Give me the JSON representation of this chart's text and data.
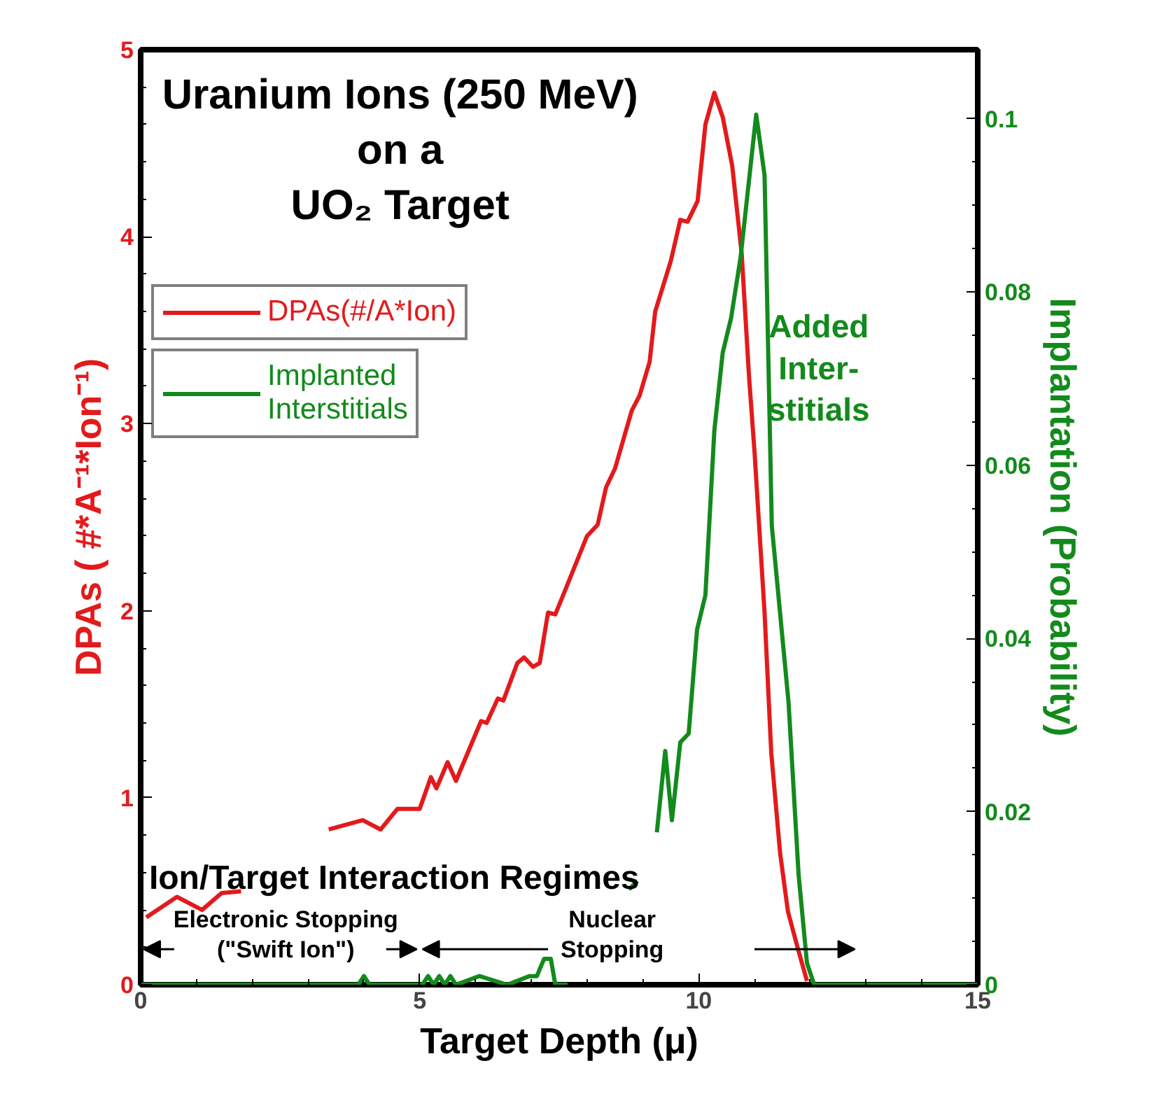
{
  "chart_data": {
    "type": "line",
    "title": "Uranium Ions (250 MeV)\non a\nUO₂ Target",
    "xlabel": "Target Depth (μ)",
    "ylabel": "DPAs ( #*A⁻¹*Ion⁻¹)",
    "y2label": "Implantation (Probability)",
    "xlim": [
      0,
      15
    ],
    "xticks": [
      0,
      5,
      10,
      15
    ],
    "ylim": [
      0,
      5
    ],
    "yticks": [
      0,
      1,
      2,
      3,
      4,
      5
    ],
    "y2lim": [
      0,
      0.108
    ],
    "y2ticks": [
      0,
      0.02,
      0.04,
      0.06,
      0.08,
      0.1
    ],
    "grid": false,
    "legend": "top left",
    "marker": "none",
    "line_style": "solid",
    "series": [
      {
        "name": "DPAs(#/A*Ion)",
        "color": "#e31a1c",
        "x": [
          0.1,
          0.65,
          1.1,
          1.45,
          1.8,
          2.5,
          3.37,
          3.98,
          4.3,
          4.6,
          5.0,
          5.2,
          5.3,
          5.5,
          5.65,
          6.1,
          6.2,
          6.4,
          6.5,
          6.75,
          6.87,
          7.03,
          7.15,
          7.3,
          7.43,
          7.58,
          8.0,
          8.19,
          8.34,
          8.5,
          8.8,
          8.94,
          9.12,
          9.22,
          9.5,
          9.67,
          9.8,
          9.98,
          10.12,
          10.28,
          10.43,
          10.6,
          10.77,
          10.9,
          11.0,
          11.18,
          11.3,
          11.46,
          11.6,
          11.78,
          11.94
        ],
        "values": [
          0.36,
          0.47,
          0.4,
          0.49,
          0.5,
          null,
          0.83,
          0.88,
          0.83,
          0.94,
          0.94,
          1.11,
          1.05,
          1.19,
          1.09,
          1.41,
          1.4,
          1.53,
          1.52,
          1.72,
          1.75,
          1.7,
          1.72,
          1.99,
          1.98,
          2.09,
          2.4,
          2.46,
          2.66,
          2.76,
          3.07,
          3.15,
          3.33,
          3.6,
          3.87,
          4.09,
          4.08,
          4.19,
          4.6,
          4.77,
          4.64,
          4.38,
          3.91,
          3.26,
          2.85,
          1.99,
          1.24,
          0.7,
          0.39,
          0.19,
          0.02
        ]
      },
      {
        "name": "Implanted\nInterstitials",
        "color": "#138a1c",
        "axis": "y2",
        "x": [
          0,
          3.9,
          4.0,
          4.1,
          5.05,
          5.15,
          5.25,
          5.35,
          5.45,
          5.55,
          5.65,
          6.07,
          6.57,
          6.97,
          7.1,
          7.23,
          7.35,
          7.43,
          7.65,
          8.0,
          8.75,
          8.9,
          9.0,
          9.25,
          9.4,
          9.52,
          9.67,
          9.82,
          9.97,
          10.12,
          10.28,
          10.43,
          10.58,
          10.75,
          11.03,
          11.18,
          11.31,
          11.61,
          11.79,
          11.94,
          12.07,
          15
        ],
        "values": [
          0,
          0,
          0.001,
          0,
          0,
          0.001,
          0,
          0.001,
          0,
          0.001,
          0,
          0.001,
          0,
          0.001,
          0.001,
          0.003,
          0.003,
          0,
          0,
          null,
          0.011,
          0.012,
          null,
          0.0176,
          0.027,
          0.019,
          0.028,
          0.029,
          0.041,
          0.045,
          0.064,
          0.073,
          0.077,
          0.084,
          0.1005,
          0.0935,
          0.053,
          0.0326,
          0.0127,
          0.0025,
          0,
          0
        ]
      }
    ],
    "annotations": [
      "Added\nInter-\nstitials",
      "Ion/Target Interaction Regimes",
      "Electronic Stopping\n(\"Swift Ion\")",
      "Nuclear\nStopping"
    ]
  }
}
